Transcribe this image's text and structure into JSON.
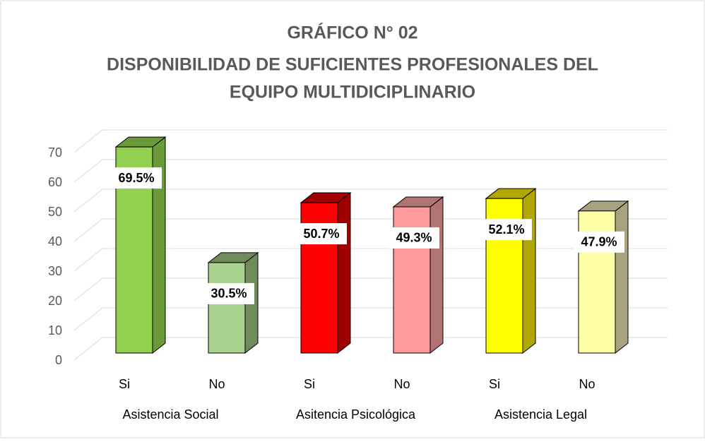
{
  "chart_data": {
    "type": "bar3d",
    "title": [
      "GRÁFICO N° 02",
      "DISPONIBILIDAD DE SUFICIENTES PROFESIONALES DEL",
      "EQUIPO MULTIDICIPLINARIO"
    ],
    "categories": [
      "Si",
      "No",
      "Si",
      "No",
      "Si",
      "No"
    ],
    "groups": [
      "Asistencia Social",
      "Asitencia Psicológica",
      "Asistencia Legal"
    ],
    "values": [
      69.5,
      30.5,
      50.7,
      49.3,
      52.1,
      47.9
    ],
    "value_labels": [
      "69.5%",
      "30.5%",
      "50.7%",
      "49.3%",
      "52.1%",
      "47.9%"
    ],
    "colors": [
      "#92d050",
      "#a9d18e",
      "#ff0000",
      "#ff9a9a",
      "#ffff00",
      "#ffffa8"
    ],
    "side_colors": [
      "#6b9a3a",
      "#6f8a5c",
      "#a00000",
      "#b07474",
      "#b0a800",
      "#a8a27e"
    ],
    "ylim": [
      0,
      70
    ],
    "yticks": [
      0,
      10,
      20,
      30,
      40,
      50,
      60,
      70
    ],
    "grid": true
  }
}
